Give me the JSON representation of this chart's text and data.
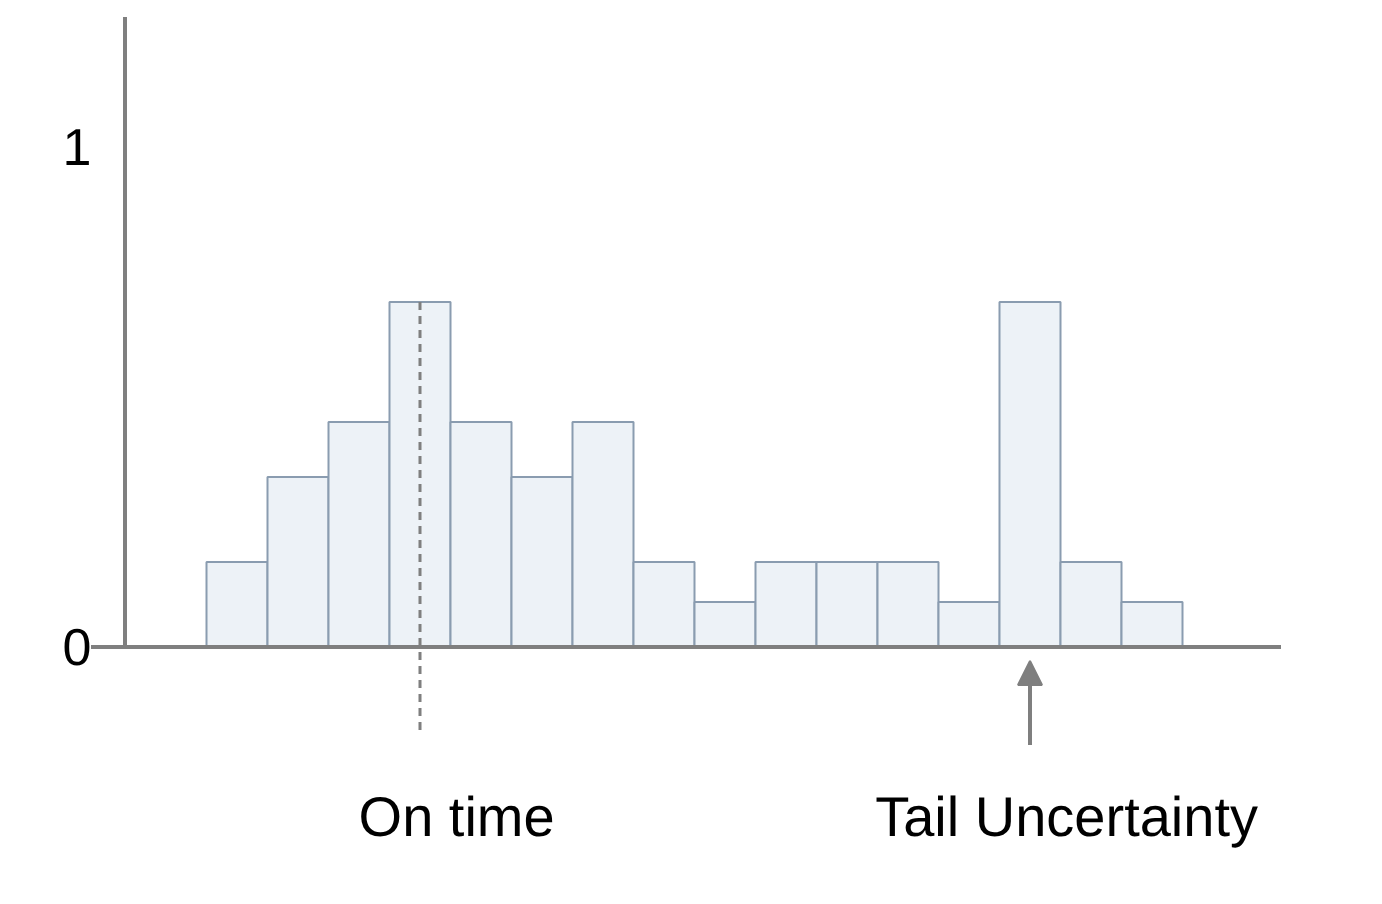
{
  "chart_data": {
    "type": "bar",
    "categories": [
      null,
      null,
      null,
      null,
      null,
      null,
      null,
      null,
      null,
      null,
      null,
      null,
      null,
      null,
      null,
      null
    ],
    "values": [
      0.17,
      0.34,
      0.45,
      0.69,
      0.45,
      0.34,
      0.45,
      0.17,
      0.09,
      0.17,
      0.17,
      0.17,
      0.09,
      0.69,
      0.17,
      0.09
    ],
    "color": "#edf2f7",
    "ylim": [
      0,
      1.26
    ],
    "yticks": [
      0,
      1
    ],
    "grid": false,
    "annotations": [
      "On time",
      "Tail Uncertainty"
    ]
  }
}
